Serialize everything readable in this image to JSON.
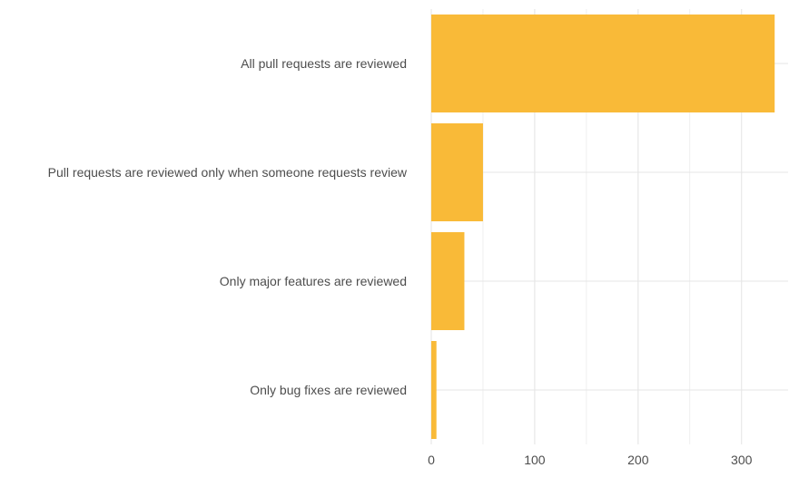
{
  "chart_data": {
    "type": "bar",
    "orientation": "horizontal",
    "title": "",
    "xlabel": "",
    "ylabel": "",
    "categories": [
      "All pull requests are reviewed",
      "Pull requests are reviewed only when someone requests review",
      "Only major features are reviewed",
      "Only bug fixes are reviewed"
    ],
    "values": [
      332,
      50,
      32,
      5
    ],
    "xlim": [
      0,
      345
    ],
    "x_ticks": [
      0,
      100,
      200,
      300
    ],
    "x_tick_labels": [
      "0",
      "100",
      "200",
      "300"
    ],
    "grid": true,
    "legend": "none",
    "bar_color": "#F9BA38",
    "grid_color": "#e5e5e5",
    "text_color": "#4d4d4d"
  }
}
